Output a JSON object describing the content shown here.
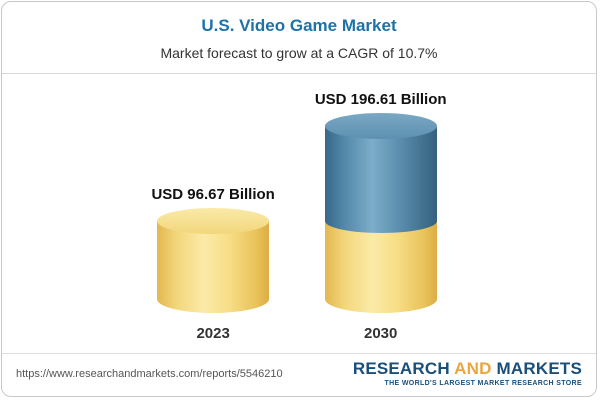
{
  "header": {
    "title": "U.S. Video Game Market",
    "subtitle": "Market forecast to grow at a CAGR of 10.7%"
  },
  "chart_data": {
    "type": "bar",
    "subtype": "3d-cylinder-stacked",
    "title": "U.S. Video Game Market",
    "subtitle": "Market forecast to grow at a CAGR of 10.7%",
    "unit": "USD Billion",
    "categories": [
      "2023",
      "2030"
    ],
    "values": [
      96.67,
      196.61
    ],
    "value_labels": [
      "USD 96.67 Billion",
      "USD 196.61 Billion"
    ],
    "cagr": "10.7%",
    "bar_2030_segments": {
      "base_value": 96.67,
      "growth_value": 99.94
    },
    "segment_colors": {
      "base": "#f4d878",
      "growth": "#4e81a4"
    },
    "legend_position": "none",
    "axes_visible": false,
    "grid": false
  },
  "footer": {
    "url": "https://www.researchandmarkets.com/reports/5546210",
    "logo": {
      "word1": "RESEARCH",
      "word2": "AND",
      "word3": "MARKETS",
      "tagline": "THE WORLD'S LARGEST MARKET RESEARCH STORE"
    }
  },
  "colors": {
    "title_blue": "#1d72a8",
    "cylinder_yellow": "#f4d878",
    "cylinder_blue": "#4e81a4",
    "logo_navy": "#1a4f7a",
    "logo_gold": "#eaa63c"
  }
}
